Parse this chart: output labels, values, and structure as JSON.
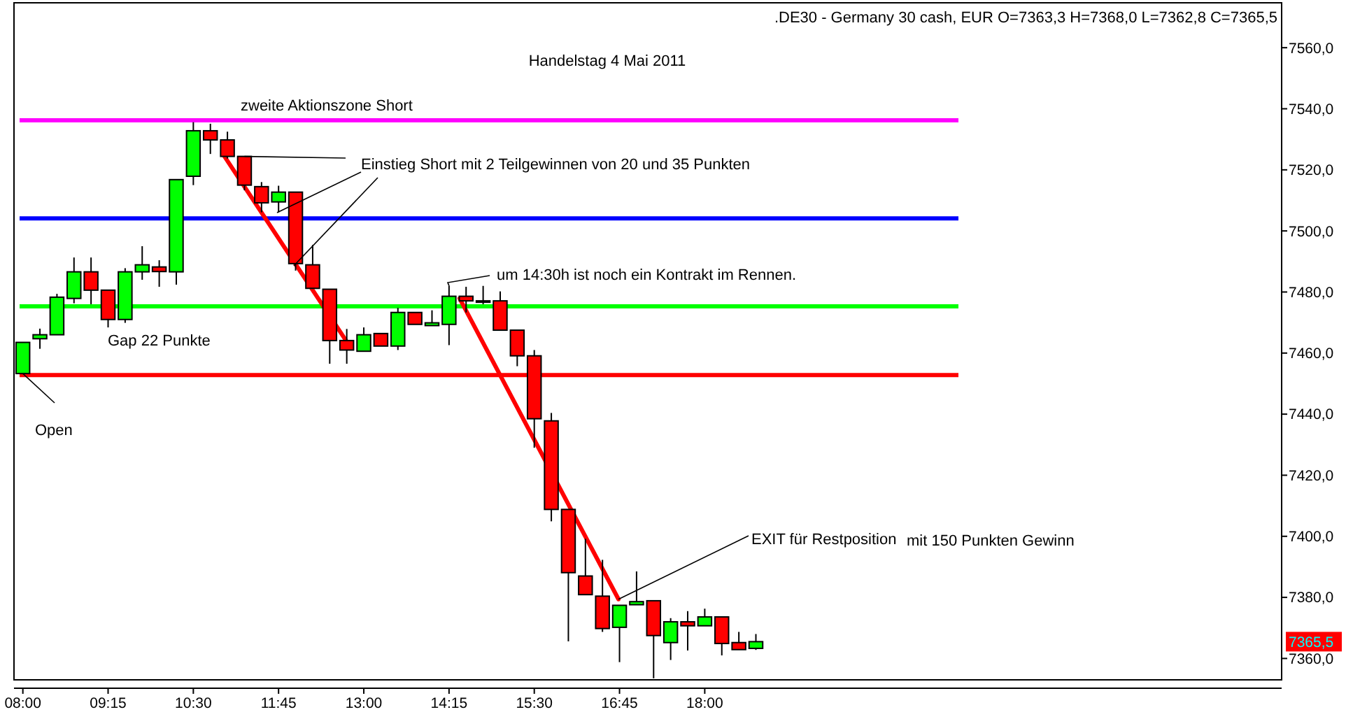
{
  "chart_data": {
    "type": "candlestick",
    "title": "Handelstag 4 Mai 2011",
    "subtitle": ".DE30 - Germany 30 cash, EUR O=7363,3 H=7368,0 L=7362,8 C=7365,5",
    "x": [
      8,
      8.25,
      8.5,
      8.75,
      9,
      9.25,
      9.5,
      9.75,
      10,
      10.25,
      10.5,
      10.75,
      11,
      11.25,
      11.5,
      11.75,
      12,
      12.25,
      12.5,
      12.75,
      13,
      13.25,
      13.5,
      13.75,
      14,
      14.25,
      14.5,
      14.75,
      15,
      15.25,
      15.5,
      15.75,
      16,
      16.25,
      16.5,
      16.75,
      17,
      17.25,
      17.5,
      17.75,
      18,
      18.25,
      18.5,
      18.75
    ],
    "ohlc": [
      [
        7453.3,
        7463.5,
        7453.3,
        7463.5
      ],
      [
        7464.7,
        7468,
        7461.4,
        7466
      ],
      [
        7466,
        7479.4,
        7466,
        7478.3
      ],
      [
        7477.9,
        7491.3,
        7476.3,
        7486.6
      ],
      [
        7486.6,
        7491.3,
        7476,
        7480.6
      ],
      [
        7480.6,
        7480.6,
        7468.4,
        7471
      ],
      [
        7471,
        7487.8,
        7469.9,
        7486.6
      ],
      [
        7486.6,
        7495,
        7484,
        7488.9
      ],
      [
        7488.2,
        7490.4,
        7481.7,
        7486.7
      ],
      [
        7486.6,
        7516.8,
        7482.4,
        7516.8
      ],
      [
        7517.9,
        7535.6,
        7515,
        7532.8
      ],
      [
        7532.8,
        7535.1,
        7525.2,
        7529.8
      ],
      [
        7529.8,
        7532.5,
        7523.7,
        7524.4
      ],
      [
        7524.4,
        7524.4,
        7513.3,
        7515
      ],
      [
        7514.5,
        7516,
        7506.1,
        7509.2
      ],
      [
        7509.5,
        7514.8,
        7506.1,
        7512.7
      ],
      [
        7512.7,
        7512.7,
        7487,
        7489.3
      ],
      [
        7488.9,
        7495.4,
        7481.2,
        7481.2
      ],
      [
        7480.9,
        7480.9,
        7456.5,
        7464.1
      ],
      [
        7464.1,
        7467.9,
        7456.5,
        7461
      ],
      [
        7460.6,
        7468.4,
        7460.6,
        7466
      ],
      [
        7466.4,
        7466.4,
        7462.3,
        7462.3
      ],
      [
        7462.3,
        7474.8,
        7461,
        7473.3
      ],
      [
        7473.3,
        7473.3,
        7469.4,
        7469.4
      ],
      [
        7469,
        7474,
        7469,
        7469.9
      ],
      [
        7469.4,
        7482.1,
        7462.6,
        7478.6
      ],
      [
        7478.6,
        7481.7,
        7473.3,
        7477.1
      ],
      [
        7477.1,
        7482,
        7476,
        7477.1
      ],
      [
        7477.1,
        7480.2,
        7467.5,
        7467.5
      ],
      [
        7467.5,
        7467.5,
        7455.7,
        7459.1
      ],
      [
        7459.1,
        7461,
        7429,
        7438.5
      ],
      [
        7437.8,
        7440.4,
        7404.9,
        7408.8
      ],
      [
        7408.8,
        7408.8,
        7365.6,
        7388.1
      ],
      [
        7387,
        7399.2,
        7380.9,
        7380.9
      ],
      [
        7380.4,
        7392.3,
        7368.7,
        7369.8
      ],
      [
        7370.2,
        7377.4,
        7358.8,
        7377.4
      ],
      [
        7377.6,
        7388.5,
        7377.6,
        7378.6
      ],
      [
        7378.9,
        7378.9,
        7353.5,
        7367.5
      ],
      [
        7365.2,
        7373.2,
        7359.5,
        7372
      ],
      [
        7372,
        7375.5,
        7362.6,
        7370.7
      ],
      [
        7370.7,
        7376.3,
        7370.7,
        7373.6
      ],
      [
        7373.6,
        7373.6,
        7361,
        7364.9
      ],
      [
        7365.2,
        7368.7,
        7362.9,
        7362.9
      ],
      [
        7363.3,
        7368,
        7362.8,
        7365.5
      ]
    ],
    "series": [
      {
        "type": "line",
        "color": "#ff0000",
        "x": [
          10.933,
          12.762
        ],
        "values": [
          7525.2,
          7463.3
        ]
      },
      {
        "type": "line",
        "color": "#ff0000",
        "x": [
          14.405,
          16.735
        ],
        "values": [
          7477.9,
          7379.4
        ]
      }
    ],
    "ref_lines": [
      {
        "axis": "y",
        "value": 7536.2,
        "color": "#ff00ff"
      },
      {
        "axis": "y",
        "value": 7504.1,
        "color": "#0000ff"
      },
      {
        "axis": "y",
        "value": 7475.3,
        "color": "#00ff00"
      },
      {
        "axis": "y",
        "value": 7452.8,
        "color": "#ff0000"
      }
    ],
    "annotations": [
      "zweite Aktionszone Short",
      {
        "text": "Einstieg Short mit 2 Teilgewinnen von 20 und 35 Punkten",
        "x": 11.25,
        "y": 7524.4
      },
      {
        "text": "um 14:30h ist noch ein Kontrakt im Rennen.",
        "x": 14.25,
        "y": 7482.1
      },
      "Gap 22 Punkte",
      {
        "text": "Open",
        "x": 8,
        "y": 7453.3
      },
      {
        "text": "EXIT für Restposition",
        "x": 16.735,
        "y": 7379.4
      },
      "mit 150 Punkten Gewinn",
      {
        "text": "7365,5",
        "y": 7365.5
      }
    ],
    "xlim": [
      7.87,
      26.46
    ],
    "ylim": [
      7353,
      7574.7
    ],
    "xticks": [
      {
        "value": 8,
        "label": "08:00"
      },
      {
        "value": 9.25,
        "label": "09:15"
      },
      {
        "value": 10.5,
        "label": "10:30"
      },
      {
        "value": 11.75,
        "label": "11:45"
      },
      {
        "value": 13,
        "label": "13:00"
      },
      {
        "value": 14.25,
        "label": "14:15"
      },
      {
        "value": 15.5,
        "label": "15:30"
      },
      {
        "value": 16.75,
        "label": "16:45"
      },
      {
        "value": 18,
        "label": "18:00"
      }
    ],
    "yticks": [
      {
        "value": 7360,
        "label": "7360,0"
      },
      {
        "value": 7380,
        "label": "7380,0"
      },
      {
        "value": 7400,
        "label": "7400,0"
      },
      {
        "value": 7420,
        "label": "7420,0"
      },
      {
        "value": 7440,
        "label": "7440,0"
      },
      {
        "value": 7460,
        "label": "7460,0"
      },
      {
        "value": 7480,
        "label": "7480,0"
      },
      {
        "value": 7500,
        "label": "7500,0"
      },
      {
        "value": 7520,
        "label": "7520,0"
      },
      {
        "value": 7540,
        "label": "7540,0"
      },
      {
        "value": 7560,
        "label": "7560,0"
      }
    ],
    "grid": false
  }
}
